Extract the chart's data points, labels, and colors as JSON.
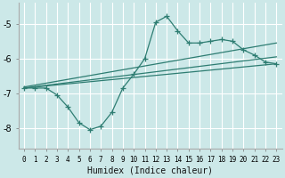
{
  "xlabel": "Humidex (Indice chaleur)",
  "ylabel": "",
  "bg_color": "#cce8e8",
  "grid_color": "#ffffff",
  "line_color": "#2e7d72",
  "xlim": [
    -0.5,
    23.5
  ],
  "ylim": [
    -8.6,
    -4.4
  ],
  "yticks": [
    -8,
    -7,
    -6,
    -5
  ],
  "xticks": [
    0,
    1,
    2,
    3,
    4,
    5,
    6,
    7,
    8,
    9,
    10,
    11,
    12,
    13,
    14,
    15,
    16,
    17,
    18,
    19,
    20,
    21,
    22,
    23
  ],
  "series_main": {
    "x": [
      0,
      1,
      2,
      3,
      4,
      5,
      6,
      7,
      8,
      9,
      10,
      11,
      12,
      13,
      14,
      15,
      16,
      17,
      18,
      19,
      20,
      21,
      22,
      23
    ],
    "y": [
      -6.85,
      -6.85,
      -6.85,
      -7.05,
      -7.4,
      -7.85,
      -8.05,
      -7.95,
      -7.55,
      -6.85,
      -6.45,
      -6.0,
      -4.95,
      -4.78,
      -5.2,
      -5.55,
      -5.55,
      -5.5,
      -5.45,
      -5.5,
      -5.75,
      -5.9,
      -6.1,
      -6.15
    ]
  },
  "series_lines": [
    {
      "x": [
        0,
        23
      ],
      "y": [
        -6.82,
        -5.55
      ]
    },
    {
      "x": [
        0,
        23
      ],
      "y": [
        -6.85,
        -5.95
      ]
    },
    {
      "x": [
        0,
        23
      ],
      "y": [
        -6.85,
        -6.15
      ]
    }
  ]
}
